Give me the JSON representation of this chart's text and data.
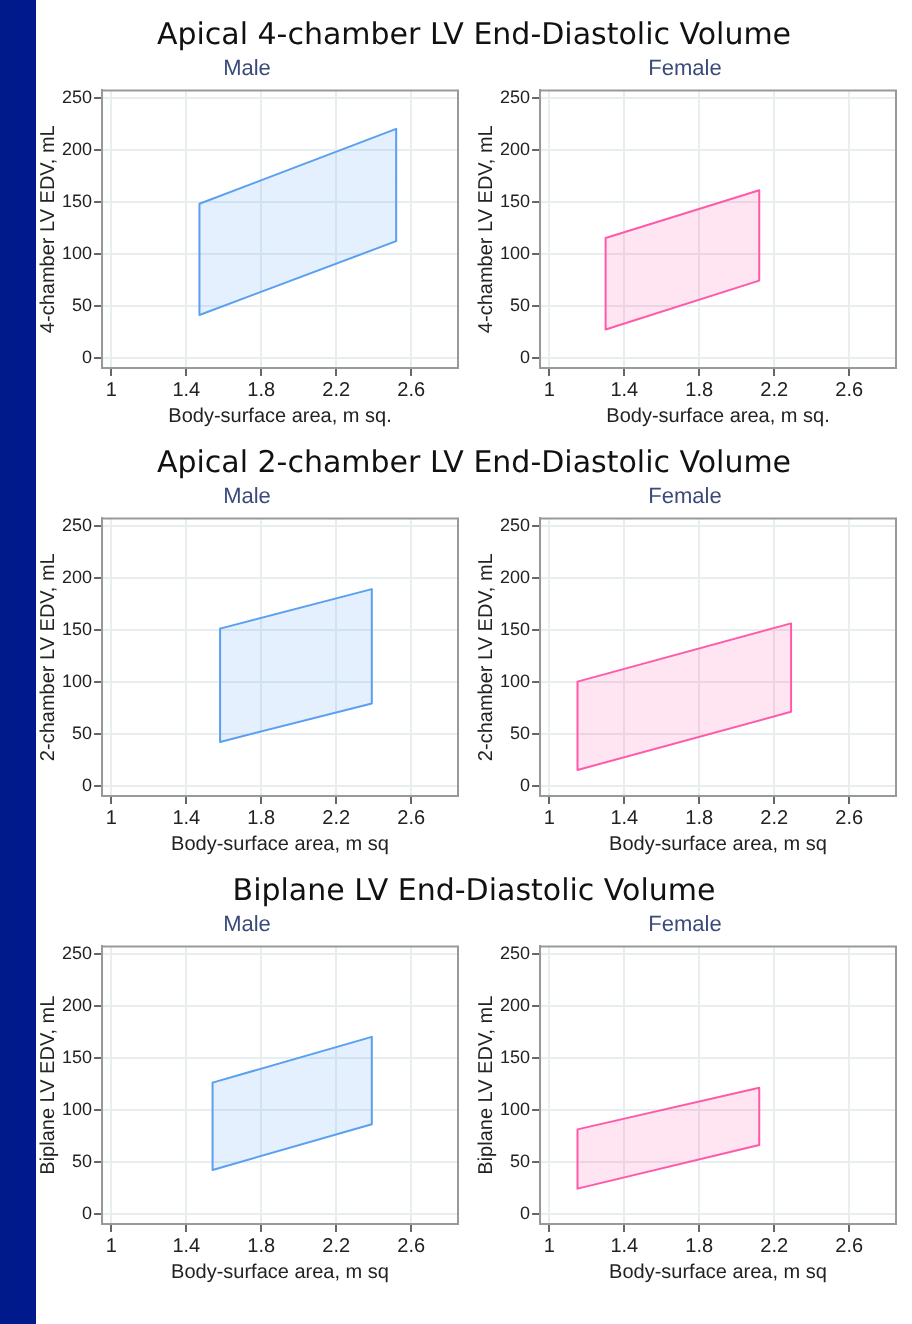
{
  "chart_data": [
    {
      "type": "area",
      "title": "Apical 4-chamber LV End-Diastolic Volume",
      "subtitle": "Male",
      "xlabel": "Body-surface area, m sq.",
      "ylabel": "4-chamber LV EDV, mL",
      "xlim": [
        0.95,
        2.85
      ],
      "ylim": [
        -10,
        257
      ],
      "xticks": [
        1,
        1.4,
        1.8,
        2.2,
        2.6
      ],
      "yticks": [
        0,
        50,
        100,
        150,
        200,
        250
      ],
      "grid": true,
      "series": [
        {
          "color": "#5a9ff0",
          "x": [
            1.47,
            2.52,
            2.52,
            1.47,
            1.47
          ],
          "values": [
            41,
            112,
            220,
            148,
            41
          ]
        }
      ]
    },
    {
      "type": "area",
      "subtitle": "Female",
      "xlabel": "Body-surface area, m sq.",
      "ylabel": "4-chamber LV EDV, mL",
      "xlim": [
        0.95,
        2.85
      ],
      "ylim": [
        -10,
        257
      ],
      "xticks": [
        1,
        1.4,
        1.8,
        2.2,
        2.6
      ],
      "yticks": [
        0,
        50,
        100,
        150,
        200,
        250
      ],
      "grid": true,
      "series": [
        {
          "color": "#ff5aa8",
          "x": [
            1.3,
            2.12,
            2.12,
            1.3,
            1.3
          ],
          "values": [
            27,
            74,
            161,
            115,
            27
          ]
        }
      ]
    },
    {
      "type": "area",
      "title": "Apical 2-chamber LV End-Diastolic Volume",
      "subtitle": "Male",
      "xlabel": "Body-surface area, m sq",
      "ylabel": "2-chamber LV EDV, mL",
      "xlim": [
        0.95,
        2.85
      ],
      "ylim": [
        -10,
        257
      ],
      "xticks": [
        1,
        1.4,
        1.8,
        2.2,
        2.6
      ],
      "yticks": [
        0,
        50,
        100,
        150,
        200,
        250
      ],
      "grid": true,
      "series": [
        {
          "color": "#5a9ff0",
          "x": [
            1.58,
            2.39,
            2.39,
            1.58,
            1.58
          ],
          "values": [
            42,
            79,
            189,
            151,
            42
          ]
        }
      ]
    },
    {
      "type": "area",
      "subtitle": "Female",
      "xlabel": "Body-surface area, m sq",
      "ylabel": "2-chamber LV EDV, mL",
      "xlim": [
        0.95,
        2.85
      ],
      "ylim": [
        -10,
        257
      ],
      "xticks": [
        1,
        1.4,
        1.8,
        2.2,
        2.6
      ],
      "yticks": [
        0,
        50,
        100,
        150,
        200,
        250
      ],
      "grid": true,
      "series": [
        {
          "color": "#ff5aa8",
          "x": [
            1.15,
            2.29,
            2.29,
            1.15,
            1.15
          ],
          "values": [
            15,
            71,
            156,
            100,
            15
          ]
        }
      ]
    },
    {
      "type": "area",
      "title": "Biplane LV End-Diastolic Volume",
      "subtitle": "Male",
      "xlabel": "Body-surface area, m sq",
      "ylabel": "Biplane LV EDV, mL",
      "xlim": [
        0.95,
        2.85
      ],
      "ylim": [
        -10,
        257
      ],
      "xticks": [
        1,
        1.4,
        1.8,
        2.2,
        2.6
      ],
      "yticks": [
        0,
        50,
        100,
        150,
        200,
        250
      ],
      "grid": true,
      "series": [
        {
          "color": "#5a9ff0",
          "x": [
            1.54,
            2.39,
            2.39,
            1.54,
            1.54
          ],
          "values": [
            42,
            86,
            170,
            126,
            42
          ]
        }
      ]
    },
    {
      "type": "area",
      "subtitle": "Female",
      "xlabel": "Body-surface area, m sq",
      "ylabel": "Biplane LV EDV, mL",
      "xlim": [
        0.95,
        2.85
      ],
      "ylim": [
        -10,
        257
      ],
      "xticks": [
        1,
        1.4,
        1.8,
        2.2,
        2.6
      ],
      "yticks": [
        0,
        50,
        100,
        150,
        200,
        250
      ],
      "grid": true,
      "series": [
        {
          "color": "#ff5aa8",
          "x": [
            1.15,
            2.12,
            2.12,
            1.15,
            1.15
          ],
          "values": [
            24,
            66,
            121,
            81,
            24
          ]
        }
      ]
    }
  ]
}
